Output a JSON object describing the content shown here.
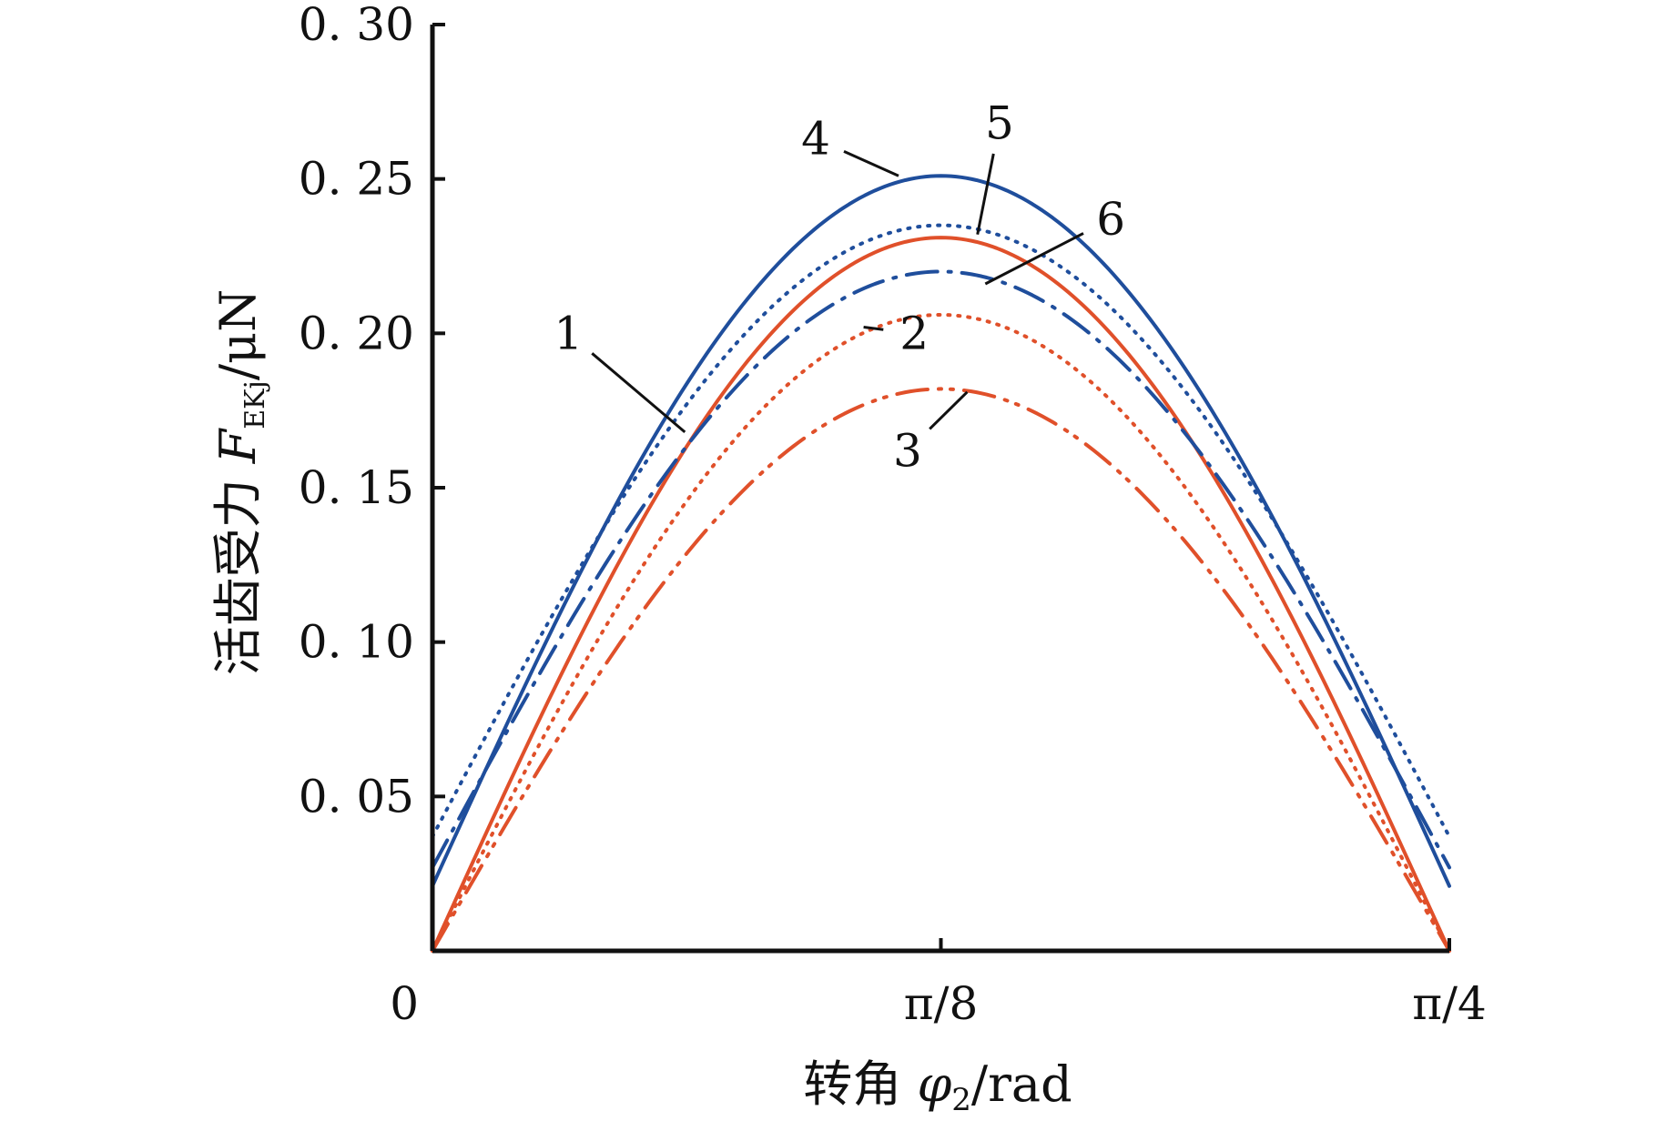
{
  "chart_data": {
    "type": "line",
    "title": "",
    "xlabel": {
      "prefix": "转角 ",
      "symbol": "φ",
      "subscript": "2",
      "suffix": "/rad"
    },
    "ylabel": {
      "prefix": "活齿受力 ",
      "symbol": "F",
      "subscript": "EKj",
      "suffix": "/μN"
    },
    "x_ticks": [
      {
        "value": 0,
        "label": "0"
      },
      {
        "value": 0.3927,
        "label": "π/8"
      },
      {
        "value": 0.7854,
        "label": "π/4"
      }
    ],
    "y_ticks": [
      {
        "value": 0.05,
        "label": "0. 05"
      },
      {
        "value": 0.1,
        "label": "0. 10"
      },
      {
        "value": 0.15,
        "label": "0. 15"
      },
      {
        "value": 0.2,
        "label": "0. 20"
      },
      {
        "value": 0.25,
        "label": "0. 25"
      },
      {
        "value": 0.3,
        "label": "0. 30"
      }
    ],
    "xlim": [
      0,
      0.7854
    ],
    "ylim": [
      0,
      0.3
    ],
    "grid": false,
    "colors": {
      "blue": "#1f4e9c",
      "red": "#e0502a",
      "axis": "#111111"
    },
    "series": [
      {
        "id": "1",
        "label": "1",
        "color": "#e0502a",
        "style": "solid",
        "base": 0.0,
        "peak": 0.231,
        "peak_x": 0.3927,
        "label_at": [
          0.105,
          0.2
        ],
        "leader_to": [
          0.195,
          0.168
        ]
      },
      {
        "id": "2",
        "label": "2",
        "color": "#e0502a",
        "style": "dotted",
        "base": 0.0,
        "peak": 0.206,
        "peak_x": 0.3927,
        "label_at": [
          0.372,
          0.2
        ],
        "leader_to": [
          0.333,
          0.202
        ]
      },
      {
        "id": "3",
        "label": "3",
        "color": "#e0502a",
        "style": "dash-dot-dot",
        "base": 0.0,
        "peak": 0.182,
        "peak_x": 0.3927,
        "label_at": [
          0.367,
          0.162
        ],
        "leader_to": [
          0.413,
          0.181
        ]
      },
      {
        "id": "4",
        "label": "4",
        "color": "#1f4e9c",
        "style": "solid",
        "base": 0.021,
        "peak": 0.251,
        "peak_x": 0.3927,
        "label_at": [
          0.296,
          0.263
        ],
        "leader_to": [
          0.36,
          0.251
        ]
      },
      {
        "id": "5",
        "label": "5",
        "color": "#1f4e9c",
        "style": "dotted",
        "base": 0.037,
        "peak": 0.235,
        "peak_x": 0.3927,
        "label_at": [
          0.438,
          0.268
        ],
        "leader_to": [
          0.421,
          0.232
        ]
      },
      {
        "id": "6",
        "label": "6",
        "color": "#1f4e9c",
        "style": "dash-dot",
        "base": 0.027,
        "peak": 0.22,
        "peak_x": 0.3927,
        "label_at": [
          0.524,
          0.237
        ],
        "leader_to": [
          0.427,
          0.216
        ]
      }
    ]
  }
}
